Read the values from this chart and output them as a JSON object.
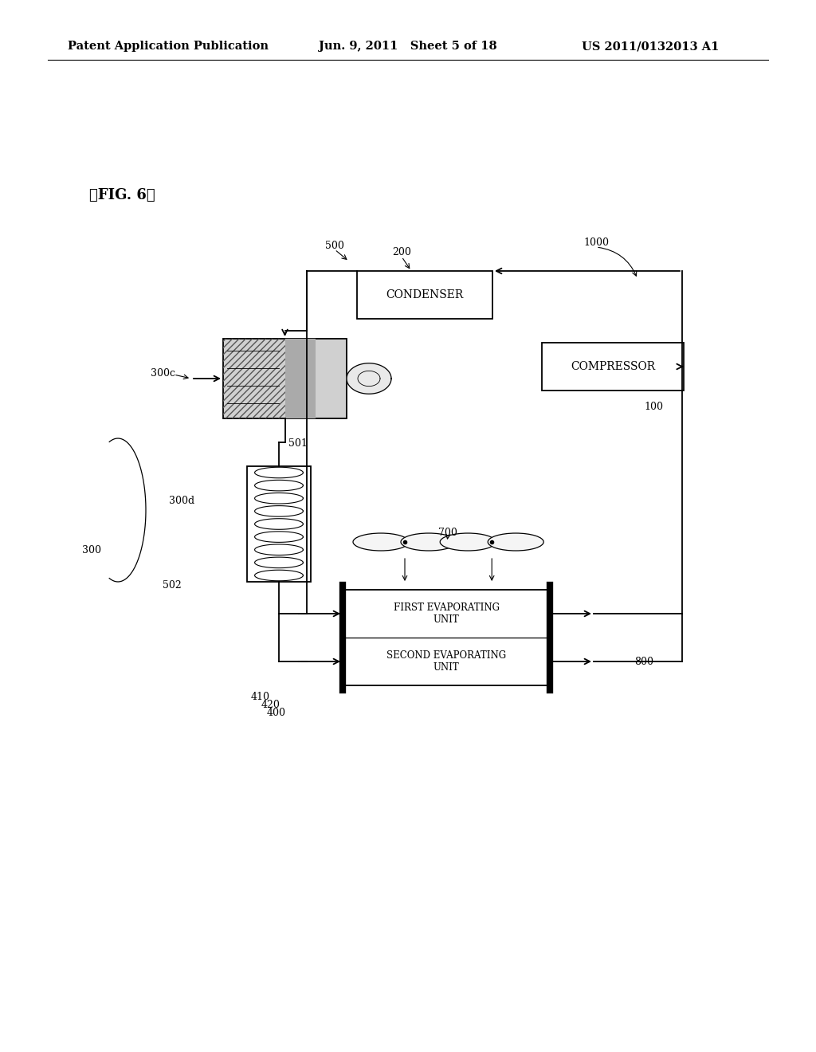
{
  "bg_color": "#ffffff",
  "header_left": "Patent Application Publication",
  "header_mid": "Jun. 9, 2011   Sheet 5 of 18",
  "header_right": "US 2011/0132013 A1",
  "fig_label": "【FIG. 6】",
  "condenser_label": "CONDENSER",
  "compressor_label": "COMPRESSOR",
  "first_evap_label": "FIRST EVAPORATING\nUNIT",
  "second_evap_label": "SECOND EVAPORATING\nUNIT"
}
